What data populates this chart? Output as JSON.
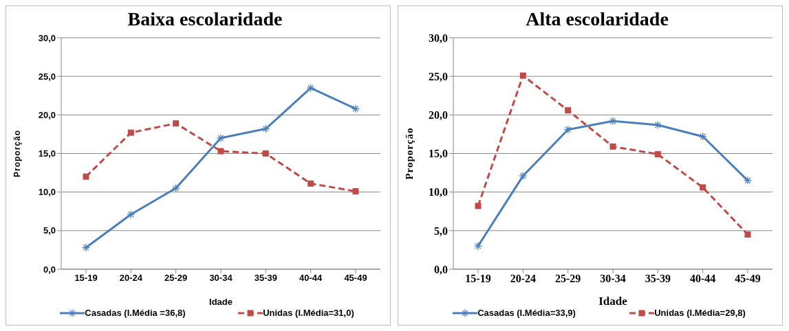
{
  "chart_data": [
    {
      "type": "line",
      "title": "Baixa escolaridade",
      "xlabel": "Idade",
      "ylabel": "Proporção",
      "categories": [
        "15-19",
        "20-24",
        "25-29",
        "30-34",
        "35-39",
        "40-44",
        "45-49"
      ],
      "series": [
        {
          "name": "Casadas (I.Média =36,8)",
          "color": "#4a7ebb",
          "marker": "cross",
          "line_style": "solid",
          "values": [
            2.8,
            7.1,
            10.5,
            17.0,
            18.2,
            23.5,
            20.8
          ]
        },
        {
          "name": "Unidas (I.Média=31,0)",
          "color": "#be4b48",
          "marker": "square",
          "line_style": "dashed",
          "values": [
            12.0,
            17.7,
            18.9,
            15.3,
            15.0,
            11.1,
            10.1
          ]
        }
      ],
      "ylim": [
        0,
        30
      ],
      "yticks": [
        {
          "value": 0,
          "label": "0,0"
        },
        {
          "value": 5,
          "label": "5,0"
        },
        {
          "value": 10,
          "label": "10,0"
        },
        {
          "value": 15,
          "label": "15,0"
        },
        {
          "value": 20,
          "label": "20,0"
        },
        {
          "value": 25,
          "label": "25,0"
        },
        {
          "value": 30,
          "label": "30,0"
        }
      ],
      "grid": "y",
      "legend": "bottom"
    },
    {
      "type": "line",
      "title": "Alta escolaridade",
      "xlabel": "Idade",
      "ylabel": "Proporção",
      "categories": [
        "15-19",
        "20-24",
        "25-29",
        "30-34",
        "35-39",
        "40-44",
        "45-49"
      ],
      "series": [
        {
          "name": "Casadas (I.Média=33,9)",
          "color": "#4a7ebb",
          "marker": "cross",
          "line_style": "solid",
          "values": [
            3.0,
            12.1,
            18.1,
            19.2,
            18.7,
            17.2,
            11.5
          ]
        },
        {
          "name": "Unidas (I.Média=29,8)",
          "color": "#be4b48",
          "marker": "square",
          "line_style": "dashed",
          "values": [
            8.2,
            25.1,
            20.6,
            15.9,
            14.9,
            10.6,
            4.5
          ]
        }
      ],
      "ylim": [
        0,
        30
      ],
      "yticks": [
        {
          "value": 0,
          "label": "0,0"
        },
        {
          "value": 5,
          "label": "5,0"
        },
        {
          "value": 10,
          "label": "10,0"
        },
        {
          "value": 15,
          "label": "15,0"
        },
        {
          "value": 20,
          "label": "20,0"
        },
        {
          "value": 25,
          "label": "25,0"
        },
        {
          "value": 30,
          "label": "30,0"
        }
      ],
      "grid": "y",
      "legend": "bottom"
    }
  ]
}
